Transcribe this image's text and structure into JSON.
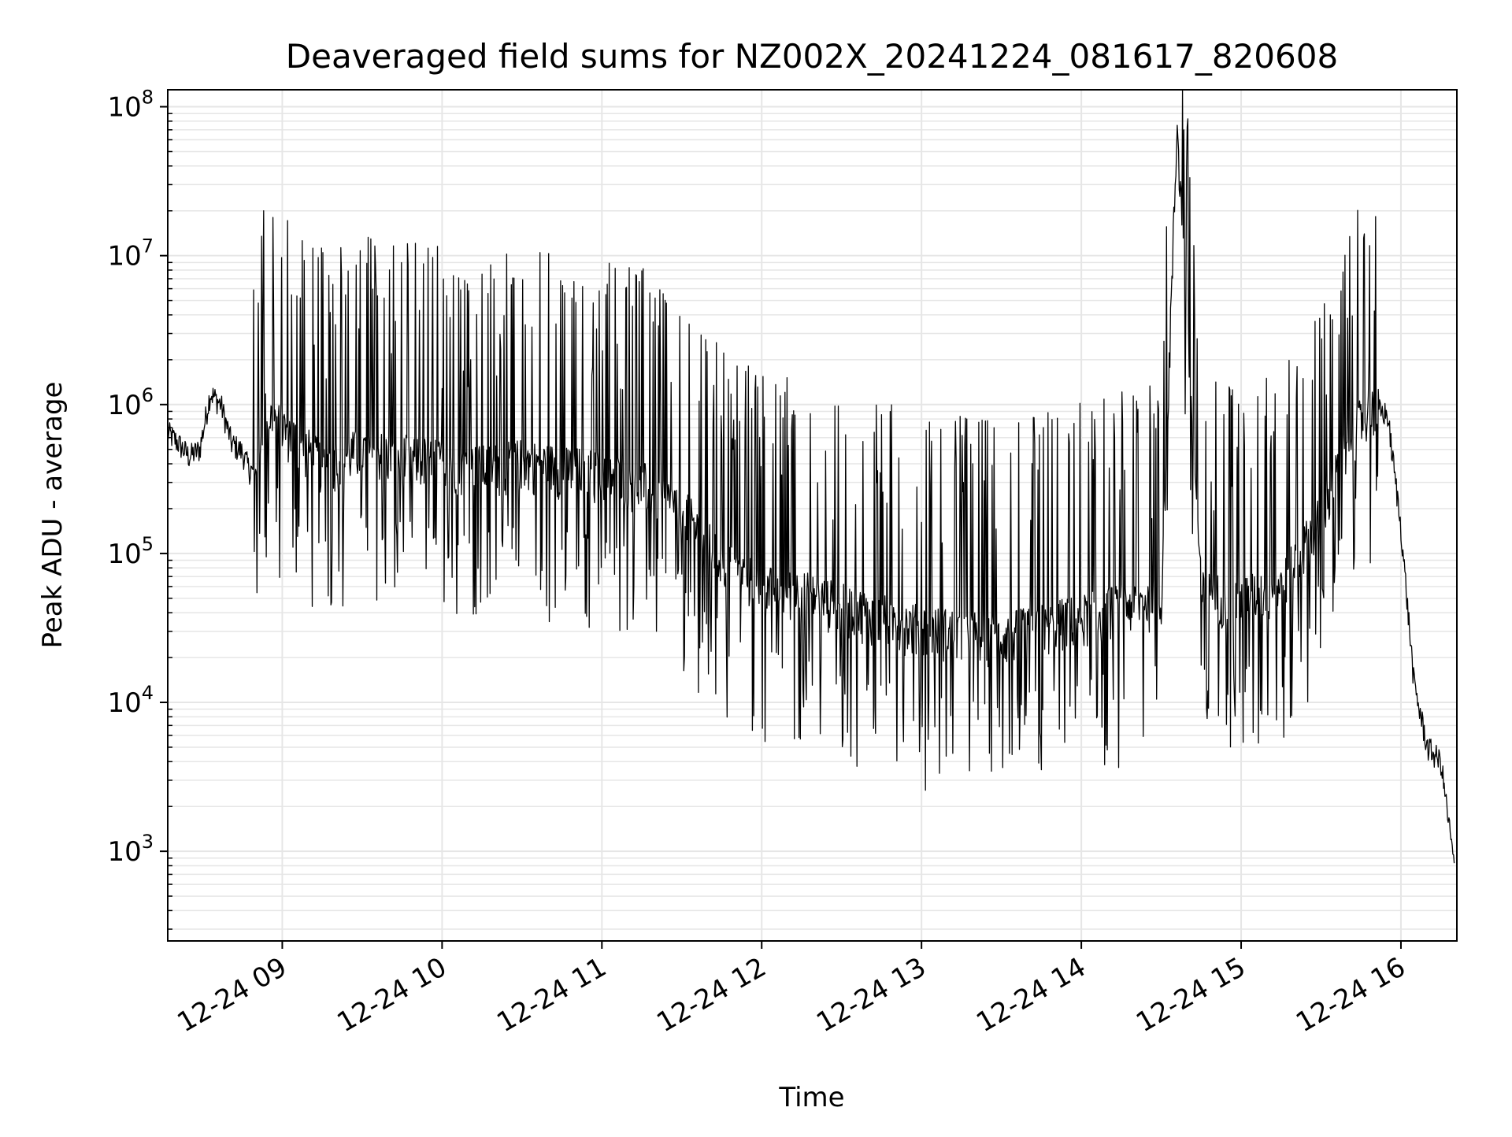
{
  "chart_data": {
    "type": "line",
    "title": "Deaveraged field sums for NZ002X_20241224_081617_820608",
    "xlabel": "Time",
    "ylabel": "Peak ADU - average",
    "yscale": "log",
    "xlim": [
      "2024-12-24 08:17",
      "2024-12-24 16:21"
    ],
    "ylim": [
      250,
      130000000
    ],
    "grid": true,
    "legend": "none",
    "line_color": "#000000",
    "x_ticks": [
      "12-24 09",
      "12-24 10",
      "12-24 11",
      "12-24 12",
      "12-24 13",
      "12-24 14",
      "12-24 15",
      "12-24 16"
    ],
    "y_ticks": [
      {
        "base": "10",
        "exp": "3"
      },
      {
        "base": "10",
        "exp": "4"
      },
      {
        "base": "10",
        "exp": "5"
      },
      {
        "base": "10",
        "exp": "6"
      },
      {
        "base": "10",
        "exp": "7"
      },
      {
        "base": "10",
        "exp": "8"
      }
    ],
    "series": [
      {
        "x": [
          "08:17",
          "08:21",
          "08:25",
          "08:29",
          "08:33",
          "08:37",
          "08:41",
          "08:45",
          "08:49",
          "08:53",
          "08:57",
          "09:05",
          "09:15",
          "09:30",
          "09:45",
          "10:00",
          "10:15",
          "10:30",
          "10:45",
          "11:00",
          "11:15",
          "11:30",
          "11:45",
          "12:00",
          "12:15",
          "12:30",
          "12:45",
          "13:00",
          "13:15",
          "13:30",
          "13:45",
          "14:00",
          "14:15",
          "14:30",
          "14:36",
          "14:45",
          "15:00",
          "15:15",
          "15:30",
          "15:40",
          "15:45",
          "15:50",
          "15:55",
          "16:00",
          "16:05",
          "16:10",
          "16:15",
          "16:20"
        ],
        "y": [
          650000,
          550000,
          450000,
          500000,
          1200000,
          1000000,
          550000,
          480000,
          320000,
          900000,
          800000,
          600000,
          400000,
          500000,
          450000,
          420000,
          380000,
          420000,
          380000,
          350000,
          300000,
          200000,
          90000,
          60000,
          55000,
          45000,
          38000,
          32000,
          30000,
          28000,
          33000,
          38000,
          45000,
          50000,
          75000000,
          55000,
          50000,
          60000,
          180000,
          550000,
          800000,
          950000,
          850000,
          150000,
          13000,
          5000,
          4000,
          800
        ]
      }
    ],
    "spikes": [
      {
        "x": "08:51",
        "y": 4800000
      },
      {
        "x": "09:41",
        "y": 2200000
      },
      {
        "x": "14:36",
        "y": 75000000
      },
      {
        "x": "15:48",
        "y": 2000000
      }
    ]
  }
}
